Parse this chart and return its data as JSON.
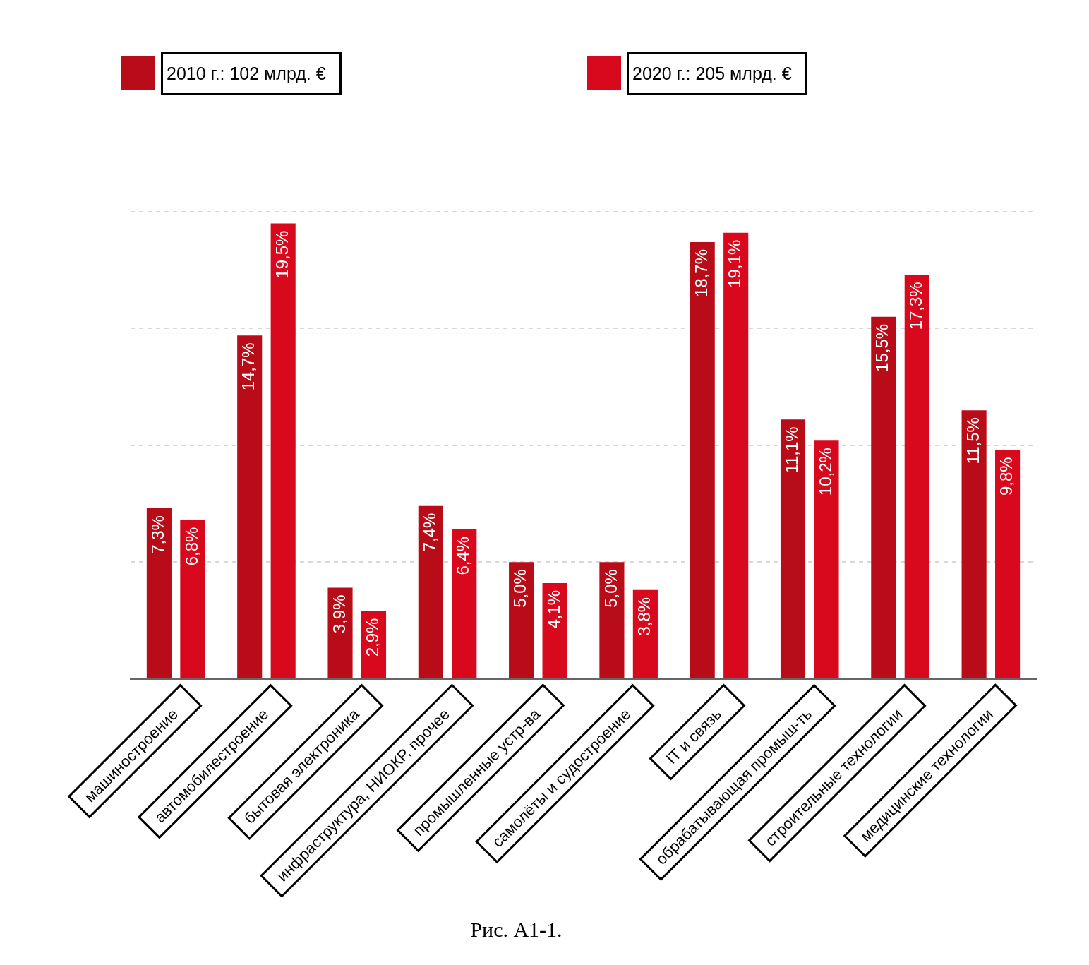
{
  "chart_data": {
    "type": "bar",
    "categories": [
      "машиностроение",
      "автомобилестроение",
      "бытовая электроника",
      "инфраструктура, НИОКР, прочее",
      "промышленные устр-ва",
      "самолёты и судостроение",
      "IT и связь",
      "обрабатывающая промыш-ть",
      "строительные технологии",
      "медицинские технологии"
    ],
    "series": [
      {
        "name": "2010 г.:  102 млрд. €",
        "color": "#b80d18",
        "values": [
          7.3,
          14.7,
          3.9,
          7.4,
          5.0,
          5.0,
          18.7,
          11.1,
          15.5,
          11.5
        ],
        "value_labels": [
          "7,3%",
          "14,7%",
          "3,9%",
          "7,4%",
          "5,0%",
          "5,0%",
          "18,7%",
          "11,1%",
          "15,5%",
          "11,5%"
        ]
      },
      {
        "name": "2020 г.:  205 млрд. €",
        "color": "#d8091d",
        "values": [
          6.8,
          19.5,
          2.9,
          6.4,
          4.1,
          3.8,
          19.1,
          10.2,
          17.3,
          9.8
        ],
        "value_labels": [
          "6,8%",
          "19,5%",
          "2,9%",
          "6,4%",
          "4,1%",
          "3,8%",
          "19,1%",
          "10,2%",
          "17,3%",
          "9,8%"
        ]
      }
    ],
    "ylim": [
      0,
      20
    ],
    "yticks": [
      {
        "value": 0,
        "label": null
      },
      {
        "value": 5,
        "label": null
      },
      {
        "value": 10,
        "label": null
      },
      {
        "value": 15,
        "label": null
      },
      {
        "value": 20,
        "label": null
      }
    ],
    "grid": "y",
    "legend": "top",
    "tick_labels": "x",
    "annotations": [
      "Рис. А1-1."
    ]
  }
}
